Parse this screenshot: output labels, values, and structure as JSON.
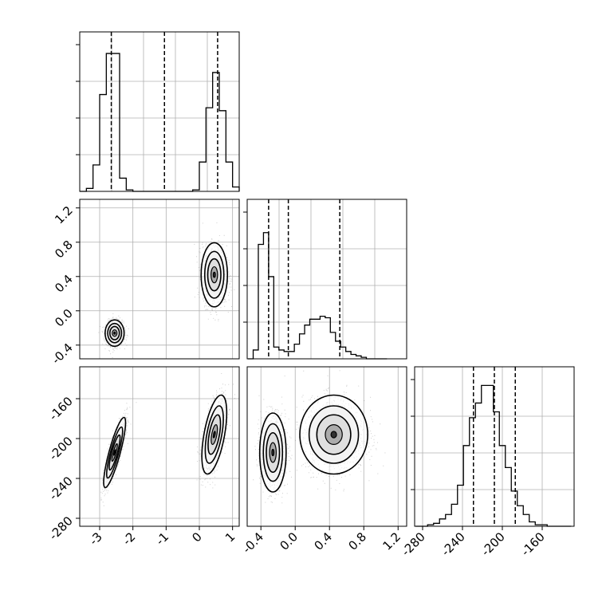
{
  "chart_data": [
    {
      "type": "histogram",
      "panel": "1-1",
      "xlim": [
        -3.6,
        1.2
      ],
      "grid": true,
      "bins_x": [
        -3.5,
        -3.3,
        -3.1,
        -2.9,
        -2.7,
        -2.5,
        -2.3,
        -2.1,
        -1.9,
        -1.7,
        -1.5,
        -1.3,
        -1.1,
        -0.9,
        -0.7,
        -0.5,
        -0.3,
        -0.1,
        0.1,
        0.3,
        0.5,
        0.7,
        0.9,
        1.1
      ],
      "counts": [
        0,
        0.02,
        0.18,
        0.66,
        0.94,
        0.94,
        0.09,
        0.01,
        0,
        0,
        0,
        0,
        0,
        0,
        0,
        0,
        0,
        0.01,
        0.2,
        0.57,
        0.81,
        0.55,
        0.2,
        0.03
      ],
      "quantiles": [
        -2.65,
        -1.05,
        0.55
      ]
    },
    {
      "type": "scatter_density",
      "panel": "2-1",
      "xlim": [
        -3.6,
        1.2
      ],
      "ylim": [
        -0.56,
        1.3
      ],
      "yticks": [
        "-0.4",
        "0.0",
        "0.4",
        "0.8",
        "1.2"
      ],
      "yticks_values": [
        -0.4,
        0.0,
        0.4,
        0.8,
        1.2
      ],
      "grid": true,
      "clusters": [
        {
          "center": [
            -2.55,
            -0.26
          ],
          "sd": [
            0.13,
            0.07
          ],
          "corr": 0.0
        },
        {
          "center": [
            0.45,
            0.42
          ],
          "sd": [
            0.18,
            0.17
          ],
          "corr": 0.0
        }
      ]
    },
    {
      "type": "scatter_density",
      "panel": "3-1",
      "xlim": [
        -3.6,
        1.2
      ],
      "ylim": [
        -288,
        -128
      ],
      "xticks": [
        "-3",
        "-2",
        "-1",
        "0",
        "1"
      ],
      "xticks_values": [
        -3,
        -2,
        -1,
        0,
        1
      ],
      "yticks": [
        "-280",
        "-240",
        "-200",
        "-160"
      ],
      "yticks_values": [
        -280,
        -240,
        -200,
        -160
      ],
      "grid": true,
      "clusters": [
        {
          "center": [
            -2.55,
            -214
          ],
          "sd": [
            0.15,
            16
          ],
          "corr": 0.85
        },
        {
          "center": [
            0.45,
            -196
          ],
          "sd": [
            0.17,
            18
          ],
          "corr": 0.55
        }
      ]
    },
    {
      "type": "histogram",
      "panel": "2-2",
      "xlim": [
        -0.56,
        1.3
      ],
      "grid": true,
      "bins_x": [
        -0.52,
        -0.46,
        -0.4,
        -0.34,
        -0.28,
        -0.22,
        -0.16,
        -0.1,
        -0.04,
        0.02,
        0.08,
        0.14,
        0.2,
        0.26,
        0.32,
        0.38,
        0.44,
        0.5,
        0.56,
        0.62,
        0.68,
        0.74,
        0.8,
        0.86,
        0.92,
        0.98,
        1.04
      ],
      "counts": [
        0,
        0.06,
        0.78,
        0.86,
        0.56,
        0.08,
        0.06,
        0.05,
        0.05,
        0.1,
        0.17,
        0.23,
        0.27,
        0.27,
        0.29,
        0.28,
        0.18,
        0.12,
        0.08,
        0.05,
        0.03,
        0.02,
        0.01,
        0,
        0,
        0,
        0
      ],
      "quantiles": [
        -0.31,
        -0.08,
        0.52
      ]
    },
    {
      "type": "scatter_density",
      "panel": "3-2",
      "xlim": [
        -0.56,
        1.3
      ],
      "ylim": [
        -288,
        -128
      ],
      "xticks": [
        "-0.4",
        "0.0",
        "0.4",
        "0.8",
        "1.2"
      ],
      "xticks_values": [
        -0.4,
        0.0,
        0.4,
        0.8,
        1.2
      ],
      "grid": true,
      "clusters": [
        {
          "center": [
            -0.26,
            -214
          ],
          "sd": [
            0.07,
            18
          ],
          "corr": 0.0
        },
        {
          "center": [
            0.45,
            -196
          ],
          "sd": [
            0.18,
            18
          ],
          "corr": 0.0
        }
      ]
    },
    {
      "type": "histogram",
      "panel": "3-3",
      "xlim": [
        -288,
        -128
      ],
      "xticks": [
        "-280",
        "-240",
        "-200",
        "-160"
      ],
      "xticks_values": [
        -280,
        -240,
        -200,
        -160
      ],
      "grid": true,
      "bins_x": [
        -284,
        -278,
        -272,
        -266,
        -260,
        -254,
        -248,
        -242,
        -236,
        -230,
        -224,
        -218,
        -212,
        -206,
        -200,
        -194,
        -188,
        -182,
        -176,
        -170,
        -164,
        -158,
        -152,
        -146,
        -140,
        -134
      ],
      "counts": [
        0,
        0,
        0.01,
        0.02,
        0.05,
        0.08,
        0.15,
        0.28,
        0.55,
        0.74,
        0.84,
        0.96,
        0.96,
        0.78,
        0.55,
        0.4,
        0.24,
        0.14,
        0.08,
        0.03,
        0.01,
        0.01,
        0,
        0,
        0,
        0
      ],
      "quantiles": [
        -229,
        -208,
        -187
      ]
    }
  ]
}
